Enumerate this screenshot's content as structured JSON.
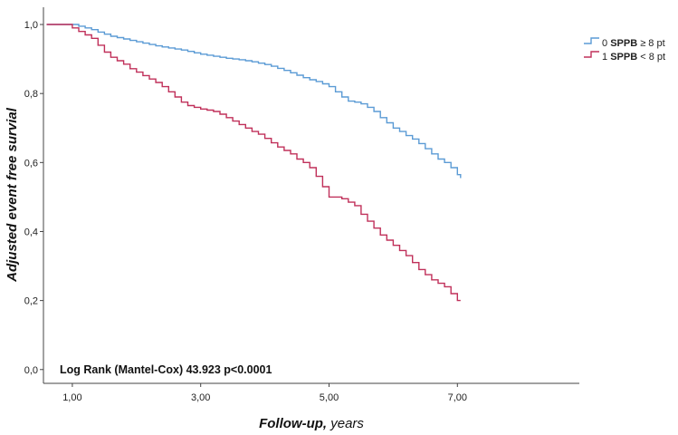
{
  "chart_data": {
    "type": "line",
    "step": true,
    "xlabel_bold": "Follow-up,",
    "xlabel_rest": " years",
    "ylabel": "Adjusted event free survial",
    "xlim": [
      0.55,
      8.9
    ],
    "ylim": [
      -0.04,
      1.05
    ],
    "x_ticks": [
      1,
      3,
      5,
      7
    ],
    "x_tick_labels": [
      "1,00",
      "3,00",
      "5,00",
      "7,00"
    ],
    "y_ticks": [
      0,
      0.2,
      0.4,
      0.6,
      0.8,
      1.0
    ],
    "y_tick_labels": [
      "0,0",
      "0,2",
      "0,4",
      "0,6",
      "0,8",
      "1,0"
    ],
    "grid": false,
    "legend_position": "top-right",
    "annotation": "Log Rank (Mantel-Cox) 43.923 p<0.0001",
    "series": [
      {
        "name": "SPPB ≥ 8 pt",
        "code": "0",
        "bold_part": "SPPB",
        "rest_part": " ≥ 8 pt",
        "color": "#5b9bd5",
        "x": [
          0.6,
          0.9,
          1.1,
          1.2,
          1.3,
          1.4,
          1.5,
          1.6,
          1.7,
          1.8,
          1.9,
          2.0,
          2.1,
          2.2,
          2.3,
          2.4,
          2.5,
          2.6,
          2.7,
          2.8,
          2.9,
          3.0,
          3.1,
          3.2,
          3.3,
          3.4,
          3.5,
          3.6,
          3.7,
          3.8,
          3.9,
          4.0,
          4.1,
          4.2,
          4.3,
          4.4,
          4.5,
          4.6,
          4.7,
          4.8,
          4.9,
          5.0,
          5.1,
          5.2,
          5.3,
          5.4,
          5.5,
          5.6,
          5.7,
          5.8,
          5.9,
          6.0,
          6.1,
          6.2,
          6.3,
          6.4,
          6.5,
          6.6,
          6.7,
          6.8,
          6.9,
          7.0,
          7.05
        ],
        "y": [
          1.0,
          1.0,
          0.995,
          0.99,
          0.985,
          0.978,
          0.972,
          0.966,
          0.962,
          0.958,
          0.954,
          0.95,
          0.946,
          0.942,
          0.938,
          0.935,
          0.932,
          0.929,
          0.926,
          0.922,
          0.918,
          0.914,
          0.911,
          0.908,
          0.905,
          0.902,
          0.9,
          0.898,
          0.895,
          0.892,
          0.888,
          0.884,
          0.879,
          0.873,
          0.867,
          0.86,
          0.853,
          0.846,
          0.84,
          0.835,
          0.828,
          0.82,
          0.805,
          0.79,
          0.778,
          0.775,
          0.77,
          0.76,
          0.748,
          0.73,
          0.715,
          0.7,
          0.69,
          0.678,
          0.668,
          0.655,
          0.64,
          0.625,
          0.61,
          0.6,
          0.585,
          0.565,
          0.555
        ]
      },
      {
        "name": "SPPB < 8 pt",
        "code": "1",
        "bold_part": "SPPB",
        "rest_part": " < 8 pt",
        "color": "#c0305a",
        "x": [
          0.6,
          0.9,
          1.0,
          1.1,
          1.2,
          1.3,
          1.4,
          1.5,
          1.6,
          1.7,
          1.8,
          1.9,
          2.0,
          2.1,
          2.2,
          2.3,
          2.4,
          2.5,
          2.6,
          2.7,
          2.8,
          2.9,
          3.0,
          3.1,
          3.2,
          3.3,
          3.4,
          3.5,
          3.6,
          3.7,
          3.8,
          3.9,
          4.0,
          4.1,
          4.2,
          4.3,
          4.4,
          4.5,
          4.6,
          4.7,
          4.8,
          4.9,
          5.0,
          5.1,
          5.2,
          5.3,
          5.4,
          5.5,
          5.6,
          5.7,
          5.8,
          5.9,
          6.0,
          6.1,
          6.2,
          6.3,
          6.4,
          6.5,
          6.6,
          6.7,
          6.8,
          6.9,
          7.0,
          7.05
        ],
        "y": [
          1.0,
          1.0,
          0.99,
          0.98,
          0.97,
          0.96,
          0.94,
          0.92,
          0.905,
          0.895,
          0.885,
          0.872,
          0.862,
          0.852,
          0.842,
          0.832,
          0.82,
          0.805,
          0.79,
          0.775,
          0.765,
          0.76,
          0.755,
          0.752,
          0.748,
          0.74,
          0.73,
          0.72,
          0.71,
          0.7,
          0.69,
          0.682,
          0.67,
          0.657,
          0.645,
          0.635,
          0.625,
          0.61,
          0.6,
          0.585,
          0.56,
          0.53,
          0.5,
          0.5,
          0.495,
          0.485,
          0.475,
          0.45,
          0.43,
          0.41,
          0.39,
          0.375,
          0.36,
          0.345,
          0.33,
          0.31,
          0.29,
          0.275,
          0.26,
          0.25,
          0.24,
          0.22,
          0.2,
          0.2
        ]
      }
    ]
  }
}
